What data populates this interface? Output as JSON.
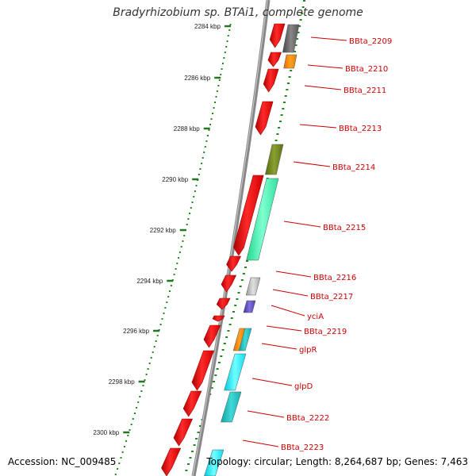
{
  "title": "Bradyrhizobium sp. BTAi1, complete genome",
  "accession": "Accession: NC_009485",
  "summary": "Topology: circular; Length: 8,264,687 bp; Genes: 7,463",
  "tick_labels": [
    "2284 kbp",
    "2286 kbp",
    "2288 kbp",
    "2290 kbp",
    "2292 kbp",
    "2294 kbp",
    "2296 kbp",
    "2298 kbp",
    "2300 kbp"
  ],
  "gene_labels": [
    "BBta_2209",
    "BBta_2210",
    "BBta_2211",
    "BBta_2213",
    "BBta_2214",
    "BBta_2215",
    "BBta_2216",
    "BBta_2217",
    "yciA",
    "BBta_2219",
    "glpR",
    "glpD",
    "BBta_2222",
    "BBta_2223"
  ],
  "colors": {
    "backbone": "#888888",
    "gene": "#ff1a1a",
    "label": "#cc0000",
    "tick": "#227722",
    "dots": "#228822"
  }
}
